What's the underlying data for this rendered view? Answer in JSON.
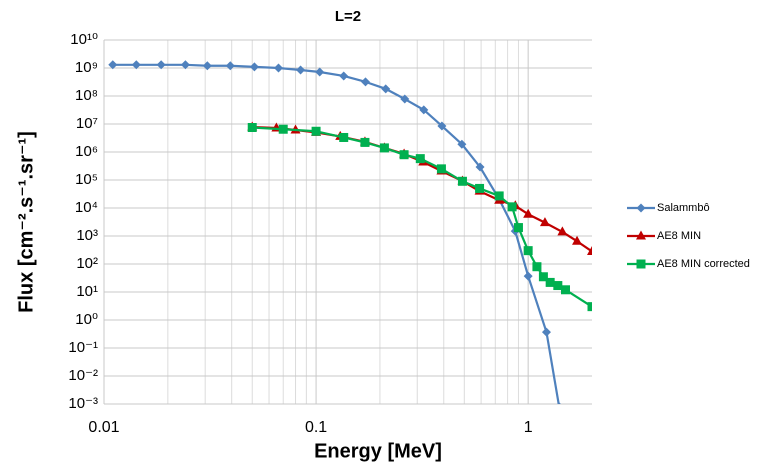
{
  "chart_data": {
    "type": "line",
    "title": "L=2",
    "x_label": "Energy [MeV]",
    "y_label": "Flux [cm⁻².s⁻¹.sr⁻¹]",
    "x_log": true,
    "y_log": true,
    "grid": true,
    "x_minor_grid": true,
    "legend": "right",
    "xlim": [
      0.01,
      2
    ],
    "ylim": [
      0.001,
      10000000000
    ],
    "xticks": [
      0.01,
      0.1,
      1
    ],
    "yticks": [
      {
        "value": 10000000000,
        "label": "10¹⁰"
      },
      {
        "value": 1000000000,
        "label": "10⁹"
      },
      {
        "value": 100000000,
        "label": "10⁸"
      },
      {
        "value": 10000000,
        "label": "10⁷"
      },
      {
        "value": 1000000,
        "label": "10⁶"
      },
      {
        "value": 100000,
        "label": "10⁵"
      },
      {
        "value": 10000,
        "label": "10⁴"
      },
      {
        "value": 1000,
        "label": "10³"
      },
      {
        "value": 100,
        "label": "10²"
      },
      {
        "value": 10,
        "label": "10¹"
      },
      {
        "value": 1,
        "label": "10⁰"
      },
      {
        "value": 0.1,
        "label": "10⁻¹"
      },
      {
        "value": 0.01,
        "label": "10⁻²"
      },
      {
        "value": 0.001,
        "label": "10⁻³"
      }
    ],
    "series": [
      {
        "name": "Salammbô",
        "color": "#4f81bd",
        "marker": "diamond",
        "x": [
          0.011,
          0.0142,
          0.0186,
          0.0242,
          0.0307,
          0.0394,
          0.0512,
          0.0665,
          0.0845,
          0.104,
          0.135,
          0.171,
          0.213,
          0.262,
          0.322,
          0.392,
          0.487,
          0.593,
          0.729,
          0.869,
          1.0,
          1.22,
          1.4
        ],
        "values": [
          1300000000,
          1300000000,
          1300000000,
          1300000000,
          1200000000,
          1200000000,
          1100000000,
          1000000000,
          850000000,
          720000000,
          520000000,
          320000000,
          180000000,
          78000000,
          32000000,
          8500000,
          1900000,
          290000,
          21000,
          1500,
          37,
          0.37,
          0.0008
        ]
      },
      {
        "name": "AE8 MIN",
        "color": "#c00000",
        "marker": "triangle",
        "x": [
          0.05,
          0.065,
          0.08,
          0.1,
          0.13,
          0.17,
          0.21,
          0.26,
          0.32,
          0.39,
          0.49,
          0.59,
          0.73,
          0.87,
          1.0,
          1.2,
          1.45,
          1.7,
          2.0
        ],
        "values": [
          7800000,
          7200000,
          6100000,
          5000000,
          3600000,
          2300000,
          1400000,
          850000,
          440000,
          210000,
          92000,
          40000,
          19000,
          12000,
          6000,
          3000,
          1400,
          650,
          280
        ]
      },
      {
        "name": "AE8 MIN corrected",
        "color": "#00b050",
        "marker": "square",
        "x": [
          0.05,
          0.07,
          0.1,
          0.135,
          0.17,
          0.21,
          0.26,
          0.31,
          0.39,
          0.49,
          0.59,
          0.73,
          0.84,
          0.9,
          1.0,
          1.1,
          1.18,
          1.27,
          1.38,
          1.5,
          2.0
        ],
        "values": [
          7500000,
          6500000,
          5500000,
          3300000,
          2200000,
          1400000,
          800000,
          580000,
          250000,
          90000,
          50000,
          27000,
          11000,
          2000,
          300,
          80,
          35,
          22,
          17,
          12,
          3
        ]
      }
    ]
  }
}
